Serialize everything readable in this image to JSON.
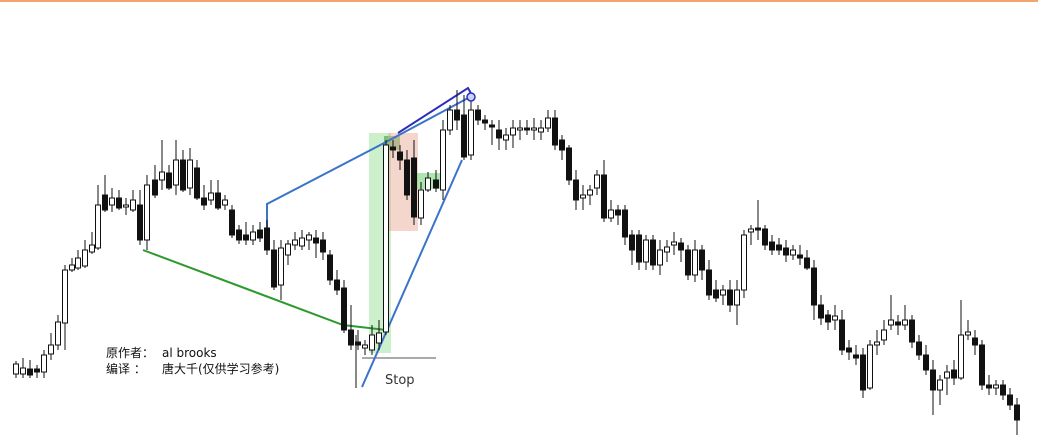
{
  "chart_data": {
    "type": "candlestick",
    "title": "",
    "xlabel": "",
    "ylabel": "",
    "grid": false,
    "legend": "none",
    "ylim": [
      0,
      443
    ],
    "note": "",
    "bars": [
      [
        16,
        374,
        364,
        378,
        361
      ],
      [
        23,
        374,
        368,
        378,
        358
      ],
      [
        30,
        369,
        375,
        378,
        360
      ],
      [
        37,
        369,
        372,
        378,
        365
      ],
      [
        44,
        372,
        355,
        378,
        350
      ],
      [
        51,
        354,
        345,
        360,
        333
      ],
      [
        58,
        345,
        322,
        350,
        315
      ],
      [
        65,
        323,
        270,
        350,
        265
      ],
      [
        72,
        270,
        265,
        272,
        258
      ],
      [
        78,
        268,
        258,
        270,
        250
      ],
      [
        85,
        266,
        250,
        268,
        240
      ],
      [
        92,
        252,
        245,
        254,
        232
      ],
      [
        98,
        248,
        205,
        250,
        185
      ],
      [
        105,
        195,
        210,
        212,
        175
      ],
      [
        112,
        205,
        198,
        212,
        188
      ],
      [
        119,
        198,
        208,
        210,
        190
      ],
      [
        126,
        207,
        205,
        215,
        198
      ],
      [
        133,
        210,
        200,
        212,
        190
      ],
      [
        140,
        205,
        240,
        245,
        190
      ],
      [
        147,
        240,
        185,
        250,
        175
      ],
      [
        155,
        180,
        195,
        198,
        165
      ],
      [
        162,
        180,
        172,
        190,
        140
      ],
      [
        169,
        173,
        188,
        190,
        165
      ],
      [
        176,
        185,
        160,
        195,
        140
      ],
      [
        183,
        160,
        190,
        192,
        150
      ],
      [
        190,
        188,
        160,
        195,
        148
      ],
      [
        197,
        168,
        198,
        200,
        160
      ],
      [
        204,
        198,
        205,
        210,
        185
      ],
      [
        211,
        200,
        193,
        205,
        180
      ],
      [
        218,
        193,
        208,
        210,
        180
      ],
      [
        225,
        205,
        200,
        210,
        195
      ],
      [
        232,
        210,
        235,
        238,
        205
      ],
      [
        239,
        230,
        240,
        244,
        225
      ],
      [
        246,
        235,
        240,
        245,
        222
      ],
      [
        253,
        240,
        232,
        245,
        225
      ],
      [
        260,
        230,
        238,
        242,
        222
      ],
      [
        267,
        228,
        250,
        255,
        220
      ],
      [
        274,
        250,
        287,
        290,
        240
      ],
      [
        281,
        285,
        248,
        300,
        240
      ],
      [
        288,
        255,
        244,
        265,
        240
      ],
      [
        295,
        245,
        240,
        250,
        232
      ],
      [
        302,
        246,
        238,
        250,
        230
      ],
      [
        309,
        240,
        235,
        250,
        232
      ],
      [
        316,
        238,
        243,
        258,
        230
      ],
      [
        323,
        240,
        252,
        260,
        232
      ],
      [
        330,
        255,
        280,
        285,
        250
      ],
      [
        337,
        280,
        290,
        295,
        270
      ],
      [
        344,
        288,
        330,
        333,
        280
      ],
      [
        351,
        330,
        345,
        350,
        305
      ],
      [
        358,
        342,
        345,
        350,
        330
      ],
      [
        365,
        348,
        345,
        355,
        340
      ],
      [
        372,
        350,
        335,
        355,
        325
      ],
      [
        379,
        343,
        333,
        350,
        320
      ],
      [
        386,
        332,
        145,
        335,
        140
      ],
      [
        393,
        147,
        150,
        158,
        140
      ],
      [
        400,
        152,
        160,
        170,
        145
      ],
      [
        407,
        160,
        195,
        200,
        150
      ],
      [
        414,
        158,
        217,
        225,
        140
      ],
      [
        421,
        218,
        190,
        225,
        182
      ],
      [
        428,
        190,
        178,
        192,
        172
      ],
      [
        436,
        180,
        188,
        192,
        170
      ],
      [
        443,
        190,
        130,
        200,
        120
      ],
      [
        450,
        130,
        110,
        135,
        105
      ],
      [
        457,
        110,
        120,
        130,
        90
      ],
      [
        464,
        115,
        157,
        160,
        95
      ],
      [
        471,
        155,
        110,
        160,
        95
      ],
      [
        478,
        110,
        120,
        125,
        105
      ],
      [
        485,
        120,
        123,
        130,
        115
      ],
      [
        492,
        125,
        127,
        145,
        120
      ],
      [
        499,
        130,
        138,
        150,
        120
      ],
      [
        506,
        140,
        135,
        150,
        128
      ],
      [
        513,
        135,
        128,
        148,
        120
      ],
      [
        520,
        130,
        128,
        140,
        120
      ],
      [
        527,
        128,
        130,
        135,
        120
      ],
      [
        534,
        130,
        128,
        140,
        118
      ],
      [
        541,
        132,
        128,
        140,
        120
      ],
      [
        548,
        128,
        118,
        132,
        110
      ],
      [
        555,
        118,
        145,
        150,
        110
      ],
      [
        562,
        140,
        150,
        160,
        135
      ],
      [
        569,
        148,
        180,
        185,
        145
      ],
      [
        576,
        180,
        200,
        210,
        170
      ],
      [
        583,
        198,
        195,
        210,
        185
      ],
      [
        590,
        195,
        190,
        205,
        185
      ],
      [
        597,
        188,
        175,
        195,
        170
      ],
      [
        604,
        175,
        218,
        222,
        160
      ],
      [
        611,
        218,
        210,
        222,
        200
      ],
      [
        618,
        210,
        215,
        225,
        205
      ],
      [
        625,
        210,
        237,
        245,
        205
      ],
      [
        632,
        235,
        250,
        265,
        230
      ],
      [
        639,
        235,
        262,
        270,
        230
      ],
      [
        646,
        262,
        240,
        270,
        235
      ],
      [
        653,
        240,
        265,
        270,
        235
      ],
      [
        660,
        265,
        250,
        275,
        240
      ],
      [
        667,
        252,
        247,
        262,
        240
      ],
      [
        674,
        245,
        242,
        255,
        232
      ],
      [
        681,
        243,
        250,
        262,
        238
      ],
      [
        688,
        250,
        275,
        280,
        245
      ],
      [
        695,
        275,
        250,
        282,
        240
      ],
      [
        702,
        250,
        270,
        280,
        245
      ],
      [
        709,
        270,
        295,
        300,
        260
      ],
      [
        716,
        290,
        298,
        302,
        280
      ],
      [
        723,
        295,
        290,
        305,
        285
      ],
      [
        730,
        290,
        305,
        312,
        280
      ],
      [
        737,
        305,
        290,
        325,
        280
      ],
      [
        744,
        290,
        235,
        298,
        230
      ],
      [
        751,
        232,
        229,
        245,
        225
      ],
      [
        758,
        228,
        230,
        240,
        200
      ],
      [
        765,
        229,
        245,
        250,
        225
      ],
      [
        772,
        242,
        250,
        255,
        235
      ],
      [
        779,
        245,
        250,
        255,
        238
      ],
      [
        786,
        248,
        255,
        262,
        240
      ],
      [
        793,
        255,
        250,
        260,
        245
      ],
      [
        800,
        255,
        258,
        265,
        245
      ],
      [
        807,
        258,
        268,
        270,
        250
      ],
      [
        814,
        268,
        305,
        320,
        260
      ],
      [
        821,
        305,
        318,
        325,
        295
      ],
      [
        828,
        315,
        322,
        330,
        310
      ],
      [
        835,
        320,
        316,
        330,
        305
      ],
      [
        842,
        320,
        350,
        355,
        310
      ],
      [
        849,
        348,
        352,
        360,
        340
      ],
      [
        856,
        355,
        358,
        365,
        345
      ],
      [
        863,
        355,
        390,
        398,
        348
      ],
      [
        870,
        388,
        345,
        390,
        340
      ],
      [
        877,
        345,
        342,
        355,
        330
      ],
      [
        884,
        340,
        330,
        345,
        320
      ],
      [
        891,
        325,
        320,
        330,
        295
      ],
      [
        898,
        322,
        325,
        335,
        315
      ],
      [
        905,
        325,
        320,
        330,
        305
      ],
      [
        912,
        320,
        342,
        348,
        315
      ],
      [
        919,
        342,
        355,
        360,
        335
      ],
      [
        926,
        355,
        370,
        375,
        345
      ],
      [
        933,
        370,
        390,
        415,
        360
      ],
      [
        940,
        390,
        380,
        405,
        375
      ],
      [
        947,
        378,
        372,
        395,
        365
      ],
      [
        954,
        370,
        378,
        385,
        360
      ],
      [
        961,
        378,
        335,
        380,
        300
      ],
      [
        968,
        335,
        332,
        340,
        320
      ],
      [
        975,
        338,
        345,
        355,
        330
      ],
      [
        982,
        345,
        385,
        390,
        340
      ],
      [
        989,
        385,
        388,
        395,
        375
      ],
      [
        996,
        388,
        385,
        395,
        380
      ],
      [
        1003,
        385,
        395,
        400,
        380
      ],
      [
        1010,
        395,
        405,
        410,
        388
      ],
      [
        1017,
        405,
        420,
        435,
        398
      ]
    ],
    "annotation_text": {
      "stop": "Stop",
      "author_label": "原作者：",
      "author_value": "al brooks",
      "translator_label": "编译 ：",
      "translator_value": "唐大千(仅供学习参考)"
    },
    "colors": {
      "candle": "#111111",
      "green_line": "#2e9a2e",
      "blue_line": "#3a74c9",
      "dark_blue_line": "#2d2dbb",
      "green_zone": "#6ed06e",
      "red_zone": "#e9a591",
      "top_rule": "#f2a46f"
    }
  }
}
